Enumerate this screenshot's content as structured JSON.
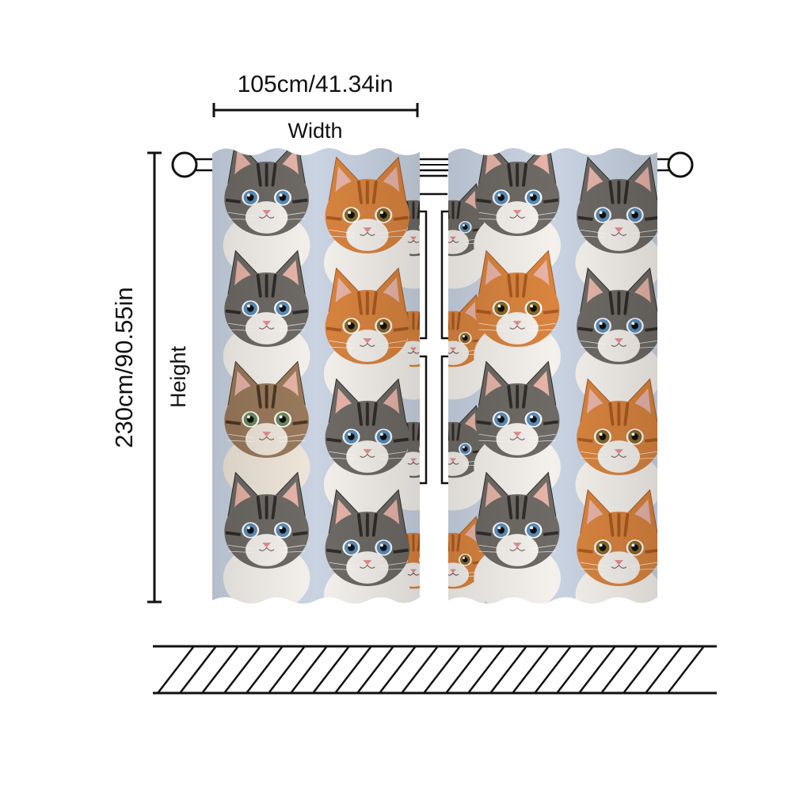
{
  "dimensions": {
    "width_value": "105cm/41.34in",
    "width_label": "Width",
    "height_value": "230cm/90.55in",
    "height_label": "Height"
  },
  "product": {
    "pattern": "kitten-faces",
    "panel_count": 2,
    "grommet_rod": true
  },
  "colors": {
    "line": "#111111",
    "orange_tabby": "#d9843f",
    "grey_tabby": "#6e6a66",
    "fur_white": "#f4f1ed",
    "background_blue": "#c9d3e2"
  }
}
